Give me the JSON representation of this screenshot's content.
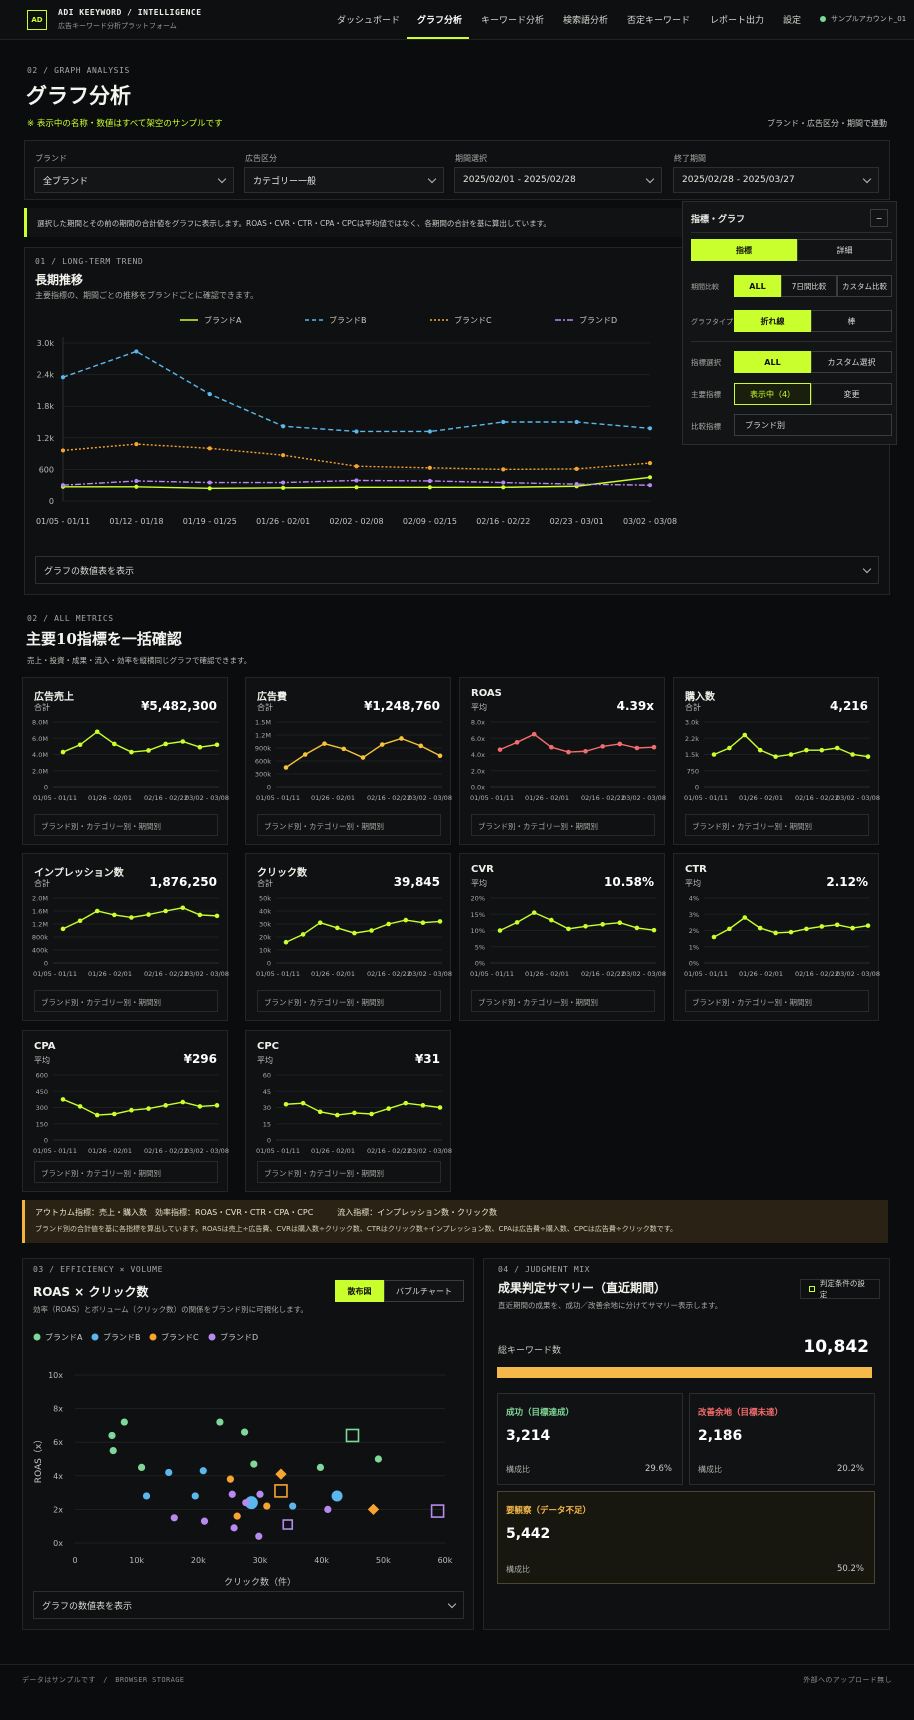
{
  "header": {
    "logo": "AD",
    "brand": "ADI KEEYWORD / INTELLIGENCE",
    "tagline": "広告キーワード分析プラットフォーム",
    "nav": [
      "ダッシュボード",
      "グラフ分析",
      "キーワード分析",
      "検索語分析",
      "否定キーワード",
      "レポート出力",
      "設定"
    ],
    "account": "サンプルアカウント_01"
  },
  "page": {
    "section_label": "02 / GRAPH ANALYSIS",
    "title": "グラフ分析",
    "notice": "※ 表示中の名称・数値はすべて架空のサンプルです",
    "sync_note": "ブランド・広告区分・期間で連動"
  },
  "filters": [
    {
      "label": "ブランド",
      "value": "全ブランド"
    },
    {
      "label": "広告区分",
      "value": "カテゴリー一般"
    },
    {
      "label": "期間選択",
      "value": "2025/02/01 - 2025/02/28"
    },
    {
      "label": "終了期間",
      "value": "2025/02/28 - 2025/03/27"
    }
  ],
  "info_text": "選択した期間とその前の期間の合計値をグラフに表示します。ROAS・CVR・CTR・CPA・CPCは平均値ではなく、各期間の合計を基に算出しています。",
  "settings": {
    "title": "指標・グラフ",
    "collapse": "−",
    "tabs": [
      "指標",
      "詳細"
    ],
    "period_label": "期間比較",
    "period_opts": [
      "ALL",
      "7日間比較",
      "カスタム比較"
    ],
    "type_label": "グラフタイプ",
    "type_opts": [
      "折れ線",
      "棒"
    ],
    "metric_label": "指標選択",
    "metric_opts": [
      "ALL",
      "カスタム選択"
    ],
    "main_label": "主要指標",
    "main_value": "表示中（4）",
    "main_change": "変更",
    "compare_label": "比較指標",
    "compare_value": "ブランド別"
  },
  "trend": {
    "section_label": "01 / LONG-TERM TREND",
    "title": "長期推移",
    "subtitle": "主要指標の、期間ごとの推移をブランドごとに確認できます。",
    "table_toggle": "グラフの数値表を表示"
  },
  "chart_data": [
    {
      "type": "line",
      "x": [
        "01/05 - 01/11",
        "01/12 - 01/18",
        "01/19 - 01/25",
        "01/26 - 02/01",
        "02/02 - 02/08",
        "02/09 - 02/15",
        "02/16 - 02/22",
        "02/23 - 03/01",
        "03/02 - 03/08"
      ],
      "ylim": [
        0,
        3000
      ],
      "yticks": [
        "0",
        "600",
        "1.2k",
        "1.8k",
        "2.4k",
        "3.0k"
      ],
      "series": [
        {
          "name": "ブランドA",
          "color": "#c8ff2c",
          "values": [
            270,
            270,
            240,
            250,
            260,
            260,
            260,
            280,
            450
          ]
        },
        {
          "name": "ブランドB",
          "color": "#5ab8ee",
          "values": [
            2350,
            2840,
            2030,
            1420,
            1320,
            1320,
            1500,
            1500,
            1380
          ]
        },
        {
          "name": "ブランドC",
          "color": "#f7a430",
          "values": [
            960,
            1080,
            1000,
            870,
            660,
            630,
            600,
            610,
            720
          ]
        },
        {
          "name": "ブランドD",
          "color": "#b68aee",
          "values": [
            300,
            380,
            350,
            350,
            390,
            380,
            350,
            320,
            300
          ]
        }
      ]
    },
    {
      "type": "scatter",
      "xlabel": "クリック数（件）",
      "ylabel": "ROAS（x）",
      "xlim": [
        0,
        60000
      ],
      "ylim": [
        0,
        10
      ],
      "xticks": [
        "0",
        "10k",
        "20k",
        "30k",
        "40k",
        "50k",
        "60k"
      ],
      "yticks": [
        "0x",
        "2x",
        "4x",
        "6x",
        "8x",
        "10x"
      ],
      "series": [
        {
          "name": "ブランドA",
          "color": "#7fd89a",
          "points": [
            [
              6000,
              6.4
            ],
            [
              6200,
              5.5
            ],
            [
              8000,
              7.2
            ],
            [
              10800,
              4.5
            ],
            [
              23500,
              7.2
            ],
            [
              27500,
              6.6
            ],
            [
              29000,
              4.7
            ],
            [
              39800,
              4.5
            ],
            [
              49200,
              5.0
            ]
          ]
        },
        {
          "name": "ブランドB",
          "color": "#5ab8ee",
          "points": [
            [
              11600,
              2.8
            ],
            [
              15200,
              4.2
            ],
            [
              19500,
              2.8
            ],
            [
              20800,
              4.3
            ],
            [
              28600,
              2.4
            ],
            [
              35300,
              2.2
            ],
            [
              42500,
              2.8
            ]
          ]
        },
        {
          "name": "ブランドC",
          "color": "#f7a430",
          "points": [
            [
              25200,
              3.8
            ],
            [
              26300,
              1.6
            ],
            [
              31100,
              2.2
            ],
            [
              33400,
              4.1
            ],
            [
              48400,
              2.0
            ]
          ]
        },
        {
          "name": "ブランドD",
          "color": "#b68aee",
          "points": [
            [
              16100,
              1.5
            ],
            [
              21000,
              1.3
            ],
            [
              25500,
              2.9
            ],
            [
              25800,
              0.9
            ],
            [
              27700,
              2.4
            ],
            [
              29800,
              0.4
            ],
            [
              30000,
              2.9
            ],
            [
              41000,
              2.0
            ],
            [
              34500,
              1.1
            ],
            [
              58800,
              1.9
            ]
          ]
        }
      ]
    }
  ],
  "metrics": {
    "section_label": "02 / ALL METRICS",
    "title": "主要10指標を一括確認",
    "subtitle": "売上・投資・成果・流入・効率を縦横同じグラフで確認できます。",
    "footer": "ブランド別・カテゴリー別・期間別",
    "xticks": [
      "01/05 - 01/11",
      "01/26 - 02/01",
      "02/16 - 02/22",
      "03/02 - 03/08"
    ],
    "cards": [
      {
        "name": "広告売上",
        "stat": "合計",
        "value": "¥5,482,300",
        "color": "#c8ff2c",
        "yticks": [
          "0",
          "2.0M",
          "4.0M",
          "6.0M",
          "8.0M"
        ],
        "ymax": 8,
        "values": [
          4.3,
          5.2,
          6.8,
          5.3,
          4.3,
          4.5,
          5.3,
          5.6,
          4.9,
          5.2
        ]
      },
      {
        "name": "広告費",
        "stat": "合計",
        "value": "¥1,248,760",
        "color": "#f7c33c",
        "yticks": [
          "0",
          "300k",
          "600k",
          "900k",
          "1.2M",
          "1.5M"
        ],
        "ymax": 1.5,
        "values": [
          0.45,
          0.75,
          1.0,
          0.88,
          0.68,
          0.98,
          1.12,
          0.95,
          0.72
        ]
      },
      {
        "name": "ROAS",
        "stat": "平均",
        "value": "4.39x",
        "color": "#f46d6d",
        "yticks": [
          "0.0x",
          "2.0x",
          "4.0x",
          "6.0x",
          "8.0x"
        ],
        "ymax": 8,
        "values": [
          4.6,
          5.5,
          6.5,
          4.9,
          4.3,
          4.4,
          5.0,
          5.3,
          4.8,
          4.9
        ]
      },
      {
        "name": "購入数",
        "stat": "合計",
        "value": "4,216",
        "color": "#c8ff2c",
        "yticks": [
          "0",
          "750",
          "1.5k",
          "2.2k",
          "3.0k"
        ],
        "ymax": 3,
        "values": [
          1.5,
          1.8,
          2.4,
          1.7,
          1.4,
          1.5,
          1.7,
          1.7,
          1.8,
          1.5,
          1.4
        ]
      },
      {
        "name": "インプレッション数",
        "stat": "合計",
        "value": "1,876,250",
        "color": "#c8ff2c",
        "yticks": [
          "0",
          "400k",
          "800k",
          "1.2M",
          "1.6M",
          "2.0M"
        ],
        "ymax": 2,
        "values": [
          1.05,
          1.3,
          1.6,
          1.48,
          1.4,
          1.49,
          1.6,
          1.7,
          1.48,
          1.45
        ]
      },
      {
        "name": "クリック数",
        "stat": "合計",
        "value": "39,845",
        "color": "#c8ff2c",
        "yticks": [
          "0",
          "10k",
          "20k",
          "30k",
          "40k",
          "50k"
        ],
        "ymax": 50,
        "values": [
          16,
          22,
          31,
          27,
          23,
          25,
          30,
          33,
          31,
          32
        ]
      },
      {
        "name": "CVR",
        "stat": "平均",
        "value": "10.58%",
        "color": "#c8ff2c",
        "yticks": [
          "0%",
          "5%",
          "10%",
          "15%",
          "20%"
        ],
        "ymax": 20,
        "values": [
          10,
          12.5,
          15.5,
          13.2,
          10.5,
          11.3,
          11.9,
          12.4,
          10.8,
          10.1
        ]
      },
      {
        "name": "CTR",
        "stat": "平均",
        "value": "2.12%",
        "color": "#c8ff2c",
        "yticks": [
          "0%",
          "1%",
          "2%",
          "3%",
          "4%"
        ],
        "ymax": 4,
        "values": [
          1.6,
          2.1,
          2.8,
          2.15,
          1.85,
          1.9,
          2.1,
          2.25,
          2.35,
          2.15,
          2.3
        ]
      },
      {
        "name": "CPA",
        "stat": "平均",
        "value": "¥296",
        "color": "#c8ff2c",
        "yticks": [
          "0",
          "150",
          "300",
          "450",
          "600"
        ],
        "ymax": 600,
        "values": [
          375,
          310,
          230,
          240,
          275,
          290,
          320,
          350,
          310,
          320
        ]
      },
      {
        "name": "CPC",
        "stat": "平均",
        "value": "¥31",
        "color": "#c8ff2c",
        "yticks": [
          "0",
          "15",
          "30",
          "45",
          "60"
        ],
        "ymax": 60,
        "values": [
          33,
          34,
          26,
          23,
          25,
          24,
          29,
          34,
          32,
          30
        ]
      }
    ]
  },
  "outcome": {
    "line1": "アウトカム指標：売上・購入数　効率指標：ROAS・CVR・CTR・CPA・CPC　　　流入指標：インプレッション数・クリック数",
    "line2": "ブランド別の合計値を基に各指標を算出しています。ROASは売上÷広告費、CVRは購入数÷クリック数、CTRはクリック数÷インプレッション数、CPAは広告費÷購入数、CPCは広告費÷クリック数です。"
  },
  "efficiency": {
    "section_label": "03 / EFFICIENCY × VOLUME",
    "title": "ROAS × クリック数",
    "subtitle": "効率（ROAS）とボリューム（クリック数）の関係をブランド別に可視化します。",
    "toggles": [
      "散布図",
      "バブルチャート"
    ],
    "table_toggle": "グラフの数値表を表示"
  },
  "judgment": {
    "section_label": "04 / JUDGMENT MIX",
    "title": "成果判定サマリー（直近期間）",
    "subtitle": "直近期間の成果を、成功／改善余地に分けてサマリー表示します。",
    "settings_btn": "判定条件の設定",
    "total_label": "総キーワード数",
    "total_value": "10,842",
    "ratio_label": "構成比",
    "success": {
      "label": "成功（目標達成）",
      "value": "3,214",
      "pct": "29.6%"
    },
    "improve": {
      "label": "改善余地（目標未達）",
      "value": "2,186",
      "pct": "20.2%"
    },
    "watch": {
      "label": "要観察（データ不足）",
      "value": "5,442",
      "pct": "50.2%"
    }
  },
  "footer": {
    "left": "データはサンプルです　/　BROWSER STORAGE",
    "right": "外部へのアップロード無し"
  }
}
